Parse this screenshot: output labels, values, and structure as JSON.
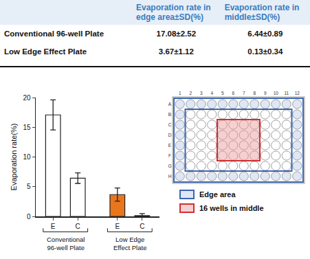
{
  "table": {
    "header": [
      "Evaporation rate in edge area±SD(%)",
      "Evaporation rate in middle±SD(%)"
    ],
    "rows": [
      {
        "label": "Conventional 96-well Plate",
        "cells": [
          "17.08±2.52",
          "6.44±0.89"
        ]
      },
      {
        "label": "Low Edge Effect Plate",
        "cells": [
          "3.67±1.12",
          "0.13±0.34"
        ]
      }
    ]
  },
  "chart_data": {
    "type": "bar",
    "categories": [
      "E",
      "C",
      "E",
      "C"
    ],
    "values": [
      17.08,
      6.44,
      3.67,
      0.13
    ],
    "errors": [
      2.52,
      0.89,
      1.12,
      0.34
    ],
    "colors": [
      "#ffffff",
      "#ffffff",
      "#e8761c",
      "#ffffff"
    ],
    "groups": [
      {
        "label": [
          "Conventional",
          "96-well Plate"
        ],
        "members": [
          0,
          1
        ]
      },
      {
        "label": [
          "Low Edge",
          "Effect Plate"
        ],
        "members": [
          2,
          3
        ]
      }
    ],
    "y_label": "Evaporation rate(%)",
    "ylim": [
      0,
      20
    ],
    "yticks": [
      0,
      5,
      10,
      15,
      20
    ],
    "grid": false
  },
  "plate": {
    "rows": [
      "A",
      "B",
      "C",
      "D",
      "E",
      "F",
      "G",
      "H"
    ],
    "columns": [
      1,
      2,
      3,
      4,
      5,
      6,
      7,
      8,
      9,
      10,
      11,
      12
    ],
    "middle_rows": [
      "C",
      "D",
      "E",
      "F"
    ],
    "middle_columns": [
      5,
      6,
      7,
      8
    ],
    "legend": [
      {
        "label": "Edge area",
        "color": "#3d66b0"
      },
      {
        "label": "16 wells in middle",
        "color": "#d03030"
      }
    ]
  }
}
